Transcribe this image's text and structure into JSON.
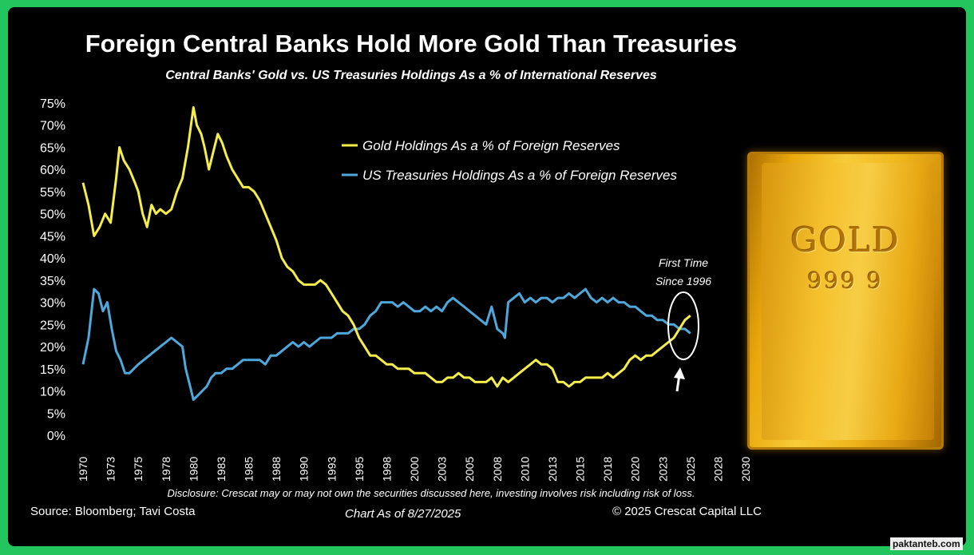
{
  "title": "Foreign Central Banks Hold More Gold Than Treasuries",
  "subtitle": "Central Banks' Gold vs. US Treasuries Holdings As a % of International Reserves",
  "disclosure": "Disclosure: Crescat may or may not own the securities discussed here, investing involves risk including risk of loss.",
  "source": "Source: Bloomberg; Tavi Costa",
  "as_of": "Chart As of 8/27/2025",
  "copyright": "© 2025 Crescat Capital LLC",
  "watermark": "paktanteb.com",
  "gold_bar": {
    "line1": "GOLD",
    "line2": "999 9"
  },
  "annotation": {
    "line1": "First Time",
    "line2": "Since 1996"
  },
  "colors": {
    "background": "#000000",
    "gold_series": "#f5ee4a",
    "treasuries_series": "#4fa8dc",
    "frame": "#22c55e"
  },
  "chart_data": {
    "type": "line",
    "title": "Foreign Central Banks Hold More Gold Than Treasuries",
    "subtitle": "Central Banks' Gold vs. US Treasuries Holdings As a % of International Reserves",
    "xlabel": "",
    "ylabel": "",
    "x_ticks": [
      "1970",
      "1973",
      "1975",
      "1978",
      "1980",
      "1983",
      "1985",
      "1988",
      "1990",
      "1993",
      "1995",
      "1998",
      "2000",
      "2003",
      "2005",
      "2008",
      "2010",
      "2013",
      "2015",
      "2018",
      "2020",
      "2023",
      "2025",
      "2028",
      "2030"
    ],
    "y_ticks": [
      "0%",
      "5%",
      "10%",
      "15%",
      "20%",
      "25%",
      "30%",
      "35%",
      "40%",
      "45%",
      "50%",
      "55%",
      "60%",
      "65%",
      "70%",
      "75%"
    ],
    "xlim": [
      1970,
      2030
    ],
    "ylim": [
      0,
      75
    ],
    "legend": "top-center",
    "grid": false,
    "series": [
      {
        "name": "Gold Holdings As a % of Foreign Reserves",
        "color": "#f5ee4a",
        "x": [
          1970,
          1970.5,
          1971,
          1971.5,
          1972,
          1972.5,
          1973,
          1973.3,
          1973.7,
          1974.2,
          1974.7,
          1975,
          1975.4,
          1975.8,
          1976.2,
          1976.6,
          1977,
          1977.5,
          1978,
          1978.5,
          1979,
          1979.5,
          1980,
          1980.3,
          1980.7,
          1981,
          1981.4,
          1981.8,
          1982.2,
          1982.6,
          1983,
          1983.5,
          1984,
          1984.5,
          1985,
          1985.5,
          1986,
          1986.5,
          1987,
          1987.5,
          1988,
          1988.5,
          1989,
          1989.5,
          1990,
          1990.5,
          1991,
          1991.5,
          1992,
          1992.5,
          1993,
          1993.5,
          1994,
          1994.5,
          1995,
          1995.5,
          1996,
          1996.5,
          1997,
          1997.5,
          1998,
          1998.5,
          1999,
          1999.5,
          2000,
          2000.5,
          2001,
          2001.5,
          2002,
          2002.5,
          2003,
          2003.5,
          2004,
          2004.5,
          2005,
          2005.5,
          2006,
          2006.5,
          2007,
          2007.5,
          2008,
          2008.5,
          2009,
          2009.5,
          2010,
          2010.5,
          2011,
          2011.5,
          2012,
          2012.5,
          2013,
          2013.5,
          2014,
          2014.5,
          2015,
          2015.5,
          2016,
          2016.5,
          2017,
          2017.5,
          2018,
          2018.5,
          2019,
          2019.5,
          2020,
          2020.5,
          2021,
          2021.5,
          2022,
          2022.5,
          2023,
          2023.5,
          2024,
          2024.5,
          2025
        ],
        "y": [
          57,
          52,
          45,
          47,
          50,
          48,
          58,
          65,
          62,
          60,
          57,
          55,
          50,
          47,
          52,
          50,
          51,
          50,
          51,
          55,
          58,
          65,
          74,
          70,
          68,
          65,
          60,
          64,
          68,
          66,
          63,
          60,
          58,
          56,
          56,
          55,
          53,
          50,
          47,
          44,
          40,
          38,
          37,
          35,
          34,
          34,
          34,
          35,
          34,
          32,
          30,
          28,
          27,
          25,
          22,
          20,
          18,
          18,
          17,
          16,
          16,
          15,
          15,
          15,
          14,
          14,
          14,
          13,
          12,
          12,
          13,
          13,
          14,
          13,
          13,
          12,
          12,
          12,
          13,
          11,
          13,
          12,
          13,
          14,
          15,
          16,
          17,
          16,
          16,
          15,
          12,
          12,
          11,
          12,
          12,
          13,
          13,
          13,
          13,
          14,
          13,
          14,
          15,
          17,
          18,
          17,
          18,
          18,
          19,
          20,
          21,
          22,
          24,
          26,
          27
        ]
      },
      {
        "name": "US Treasuries Holdings As a % of Foreign Reserves",
        "color": "#4fa8dc",
        "x": [
          1970,
          1970.5,
          1971,
          1971.4,
          1971.8,
          1972.2,
          1972.6,
          1973,
          1973.4,
          1973.8,
          1974.2,
          1974.6,
          1975,
          1975.5,
          1976,
          1976.5,
          1977,
          1977.5,
          1978,
          1978.5,
          1979,
          1979.3,
          1979.7,
          1980,
          1980.4,
          1980.8,
          1981.2,
          1981.6,
          1982,
          1982.5,
          1983,
          1983.5,
          1984,
          1984.5,
          1985,
          1985.5,
          1986,
          1986.5,
          1987,
          1987.5,
          1988,
          1988.5,
          1989,
          1989.5,
          1990,
          1990.5,
          1991,
          1991.5,
          1992,
          1992.5,
          1993,
          1993.5,
          1994,
          1994.5,
          1995,
          1995.5,
          1996,
          1996.5,
          1997,
          1997.5,
          1998,
          1998.5,
          1999,
          1999.5,
          2000,
          2000.5,
          2001,
          2001.5,
          2002,
          2002.5,
          2003,
          2003.5,
          2004,
          2004.5,
          2005,
          2005.5,
          2006,
          2006.5,
          2007,
          2007.5,
          2008,
          2008.2,
          2008.5,
          2009,
          2009.5,
          2010,
          2010.5,
          2011,
          2011.5,
          2012,
          2012.5,
          2013,
          2013.5,
          2014,
          2014.5,
          2015,
          2015.5,
          2016,
          2016.5,
          2017,
          2017.5,
          2018,
          2018.5,
          2019,
          2019.5,
          2020,
          2020.5,
          2021,
          2021.5,
          2022,
          2022.5,
          2023,
          2023.5,
          2024,
          2024.5,
          2025
        ],
        "y": [
          16,
          22,
          33,
          32,
          28,
          30,
          24,
          19,
          17,
          14,
          14,
          15,
          16,
          17,
          18,
          19,
          20,
          21,
          22,
          21,
          20,
          15,
          11,
          8,
          9,
          10,
          11,
          13,
          14,
          14,
          15,
          15,
          16,
          17,
          17,
          17,
          17,
          16,
          18,
          18,
          19,
          20,
          21,
          20,
          21,
          20,
          21,
          22,
          22,
          22,
          23,
          23,
          23,
          24,
          24,
          25,
          27,
          28,
          30,
          30,
          30,
          29,
          30,
          29,
          28,
          28,
          29,
          28,
          29,
          28,
          30,
          31,
          30,
          29,
          28,
          27,
          26,
          25,
          29,
          24,
          23,
          22,
          30,
          31,
          32,
          30,
          31,
          30,
          31,
          31,
          30,
          31,
          31,
          32,
          31,
          32,
          33,
          31,
          30,
          31,
          30,
          31,
          30,
          30,
          29,
          29,
          28,
          27,
          27,
          26,
          26,
          25,
          25,
          24,
          24,
          23
        ]
      }
    ]
  }
}
